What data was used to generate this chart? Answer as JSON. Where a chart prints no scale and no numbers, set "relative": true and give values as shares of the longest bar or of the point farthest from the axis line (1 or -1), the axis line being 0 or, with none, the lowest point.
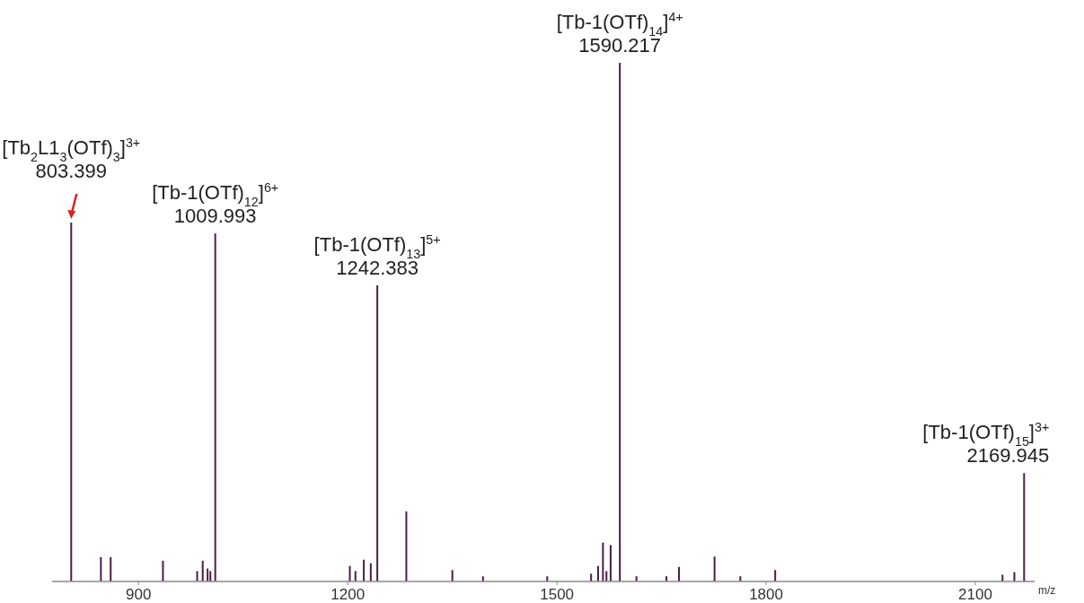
{
  "chart_data": {
    "type": "bar",
    "relative": true,
    "xlabel": "m/z",
    "color": "#4a1f45",
    "x": [
      803.399,
      846,
      860,
      935,
      984,
      992,
      999,
      1003,
      1009.993,
      1203,
      1211,
      1223,
      1233,
      1242.383,
      1284,
      1350,
      1394,
      1486,
      1549,
      1559,
      1566,
      1571,
      1577,
      1590.217,
      1614,
      1657,
      1675,
      1726,
      1763,
      1813,
      2139,
      2156,
      2169.945
    ],
    "values": [
      0.692,
      0.047,
      0.047,
      0.04,
      0.02,
      0.04,
      0.025,
      0.02,
      0.671,
      0.03,
      0.02,
      0.042,
      0.035,
      0.571,
      0.135,
      0.022,
      0.01,
      0.01,
      0.015,
      0.03,
      0.075,
      0.02,
      0.07,
      1,
      0.01,
      0.01,
      0.028,
      0.048,
      0.01,
      0.022,
      0.013,
      0.018,
      0.209
    ],
    "xlim": [
      776,
      2185
    ],
    "xticks": [
      900,
      1200,
      1500,
      1800,
      2100
    ],
    "annotations": [
      {
        "text": "[Tb$_{2}$L1$_{3}$(OTf)$_{3}$]$^{3+}$",
        "x": 803.399,
        "y": 0.692
      },
      {
        "text": "803.399",
        "x": 803.399,
        "y": 0.692
      },
      {
        "text": "[Tb-1(OTf)$_{12}$]$^{6+}$",
        "x": 1009.993,
        "y": 0.671
      },
      {
        "text": "1009.993",
        "x": 1009.993,
        "y": 0.671
      },
      {
        "text": "[Tb-1(OTf)$_{13}$]$^{5+}$",
        "x": 1242.383,
        "y": 0.571
      },
      {
        "text": "1242.383",
        "x": 1242.383,
        "y": 0.571
      },
      {
        "text": "[Tb-1(OTf)$_{14}$]$^{4+}$",
        "x": 1590.217,
        "y": 1
      },
      {
        "text": "1590.217",
        "x": 1590.217,
        "y": 1
      },
      {
        "text": "[Tb-1(OTf)$_{15}$]$^{3+}$",
        "x": 2169.945,
        "y": 0.209
      },
      {
        "text": "2169.945",
        "x": 2169.945,
        "y": 0.209
      }
    ]
  }
}
